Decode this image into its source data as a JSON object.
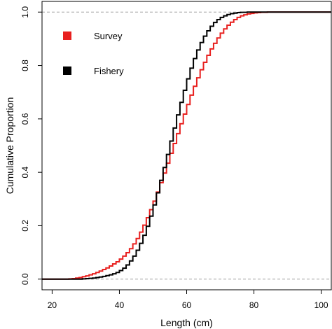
{
  "chart_data": {
    "type": "line",
    "title": "",
    "xlabel": "Length (cm)",
    "ylabel": "Cumulative Proportion",
    "xlim": [
      17,
      103
    ],
    "ylim": [
      -0.04,
      1.04
    ],
    "x_ticks": [
      20,
      40,
      60,
      80,
      100
    ],
    "y_ticks": [
      0.0,
      0.2,
      0.4,
      0.6,
      0.8,
      1.0
    ],
    "y_tick_labels": [
      "0.0",
      "0.2",
      "0.4",
      "0.6",
      "0.8",
      "1.0"
    ],
    "reference_lines": [
      0,
      1
    ],
    "step": true,
    "grid": false,
    "legend_position": "top-left",
    "x": [
      17,
      18,
      19,
      20,
      21,
      22,
      23,
      24,
      25,
      26,
      27,
      28,
      29,
      30,
      31,
      32,
      33,
      34,
      35,
      36,
      37,
      38,
      39,
      40,
      41,
      42,
      43,
      44,
      45,
      46,
      47,
      48,
      49,
      50,
      51,
      52,
      53,
      54,
      55,
      56,
      57,
      58,
      59,
      60,
      61,
      62,
      63,
      64,
      65,
      66,
      67,
      68,
      69,
      70,
      71,
      72,
      73,
      74,
      75,
      76,
      77,
      78,
      79,
      80,
      81,
      82,
      83,
      84,
      85,
      86,
      87,
      88,
      89,
      90,
      91,
      92,
      93,
      94,
      95,
      96,
      97,
      98,
      99,
      100,
      101,
      102,
      103
    ],
    "series": [
      {
        "name": "Survey",
        "color": "#e8201f",
        "values": [
          0,
          0,
          0,
          0,
          0,
          0,
          0,
          0,
          0.001,
          0.002,
          0.004,
          0.006,
          0.009,
          0.012,
          0.016,
          0.02,
          0.025,
          0.03,
          0.036,
          0.042,
          0.049,
          0.057,
          0.065,
          0.075,
          0.086,
          0.099,
          0.114,
          0.132,
          0.152,
          0.176,
          0.202,
          0.23,
          0.26,
          0.292,
          0.326,
          0.361,
          0.397,
          0.434,
          0.471,
          0.508,
          0.545,
          0.582,
          0.618,
          0.654,
          0.689,
          0.722,
          0.754,
          0.784,
          0.812,
          0.838,
          0.862,
          0.883,
          0.903,
          0.921,
          0.937,
          0.951,
          0.962,
          0.972,
          0.98,
          0.986,
          0.99,
          0.993,
          0.995,
          0.997,
          0.998,
          0.999,
          0.999,
          1,
          1,
          1,
          1,
          1,
          1,
          1,
          1,
          1,
          1,
          1,
          1,
          1,
          1,
          1,
          1,
          1,
          1,
          1,
          1
        ]
      },
      {
        "name": "Fishery",
        "color": "#000000",
        "values": [
          0,
          0,
          0,
          0,
          0,
          0,
          0,
          0,
          0,
          0,
          0,
          0,
          0.001,
          0.002,
          0.003,
          0.004,
          0.006,
          0.008,
          0.01,
          0.013,
          0.016,
          0.02,
          0.025,
          0.032,
          0.041,
          0.053,
          0.068,
          0.086,
          0.108,
          0.134,
          0.164,
          0.198,
          0.236,
          0.278,
          0.323,
          0.37,
          0.418,
          0.467,
          0.517,
          0.566,
          0.615,
          0.662,
          0.707,
          0.75,
          0.79,
          0.826,
          0.858,
          0.886,
          0.91,
          0.93,
          0.947,
          0.961,
          0.972,
          0.98,
          0.986,
          0.991,
          0.994,
          0.996,
          0.998,
          0.999,
          0.999,
          1,
          1,
          1,
          1,
          1,
          1,
          1,
          1,
          1,
          1,
          1,
          1,
          1,
          1,
          1,
          1,
          1,
          1,
          1,
          1,
          1,
          1,
          1,
          1,
          1,
          1
        ]
      }
    ]
  }
}
